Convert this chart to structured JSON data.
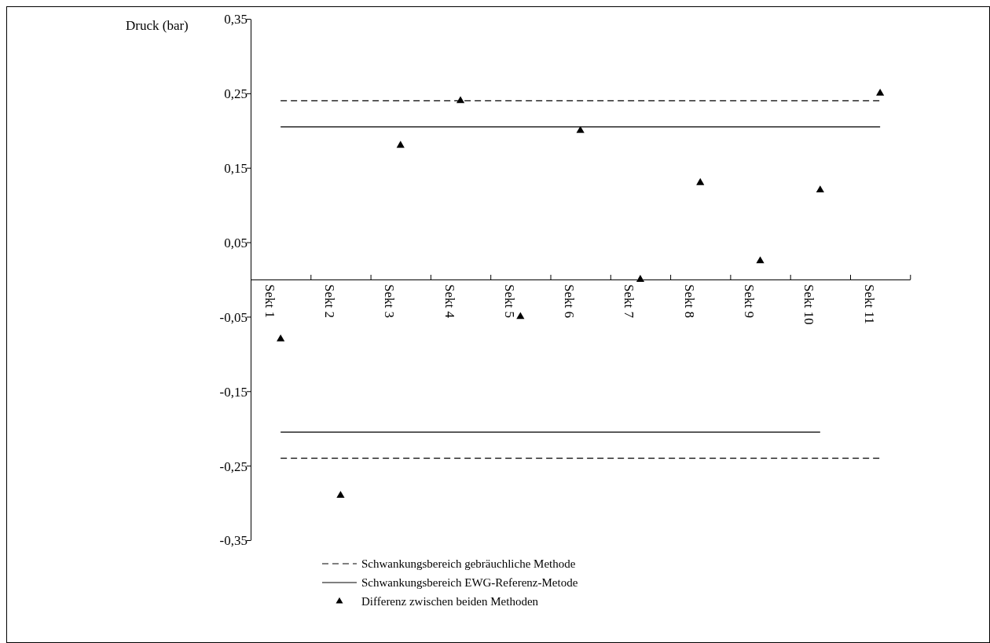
{
  "chart_data": {
    "type": "scatter",
    "ylabel": "Druck (bar)",
    "categories": [
      "Sekt 1",
      "Sekt 2",
      "Sekt 3",
      "Sekt 4",
      "Sekt 5",
      "Sekt 6",
      "Sekt 7",
      "Sekt 8",
      "Sekt 9",
      "Sekt 10",
      "Sekt 11"
    ],
    "ylim": [
      -0.35,
      0.35
    ],
    "yticks": [
      {
        "value": 0.35,
        "label": "0,35"
      },
      {
        "value": 0.25,
        "label": "0,25"
      },
      {
        "value": 0.15,
        "label": "0,15"
      },
      {
        "value": 0.05,
        "label": "0,05"
      },
      {
        "value": -0.05,
        "label": "-0,05"
      },
      {
        "value": -0.15,
        "label": "-0,15"
      },
      {
        "value": -0.25,
        "label": "-0,25"
      },
      {
        "value": -0.35,
        "label": "-0,35"
      }
    ],
    "grid": false,
    "legend": "bottom",
    "series": [
      {
        "name": "Schwankungsbereich gebräuchliche Methode",
        "type": "line",
        "line_style": "dashed",
        "color": "#000000",
        "values": [
          0.24,
          0.24,
          0.24,
          0.24,
          0.24,
          0.24,
          0.24,
          0.24,
          0.24,
          0.24,
          0.24
        ]
      },
      {
        "name": "Schwankungsbereich EWG-Referenz-Metode",
        "type": "line",
        "line_style": "solid",
        "color": "#000000",
        "values": [
          0.205,
          0.205,
          0.205,
          0.205,
          0.205,
          0.205,
          0.205,
          0.205,
          0.205,
          0.205,
          0.205
        ]
      },
      {
        "type": "line",
        "line_style": "solid",
        "color": "#000000",
        "values": [
          -0.205,
          -0.205,
          -0.205,
          -0.205,
          -0.205,
          -0.205,
          -0.205,
          -0.205,
          -0.205,
          -0.205,
          null
        ]
      },
      {
        "type": "line",
        "line_style": "dashed",
        "color": "#000000",
        "values": [
          -0.24,
          -0.24,
          -0.24,
          -0.24,
          -0.24,
          -0.24,
          -0.24,
          -0.24,
          -0.24,
          -0.24,
          -0.24
        ]
      },
      {
        "name": "Differenz zwischen beiden Methoden",
        "type": "scatter",
        "marker": "triangle",
        "color": "#000000",
        "values": [
          -0.08,
          -0.29,
          0.18,
          0.24,
          -0.05,
          0.2,
          0.0,
          0.13,
          0.025,
          0.12,
          0.25
        ]
      }
    ]
  }
}
